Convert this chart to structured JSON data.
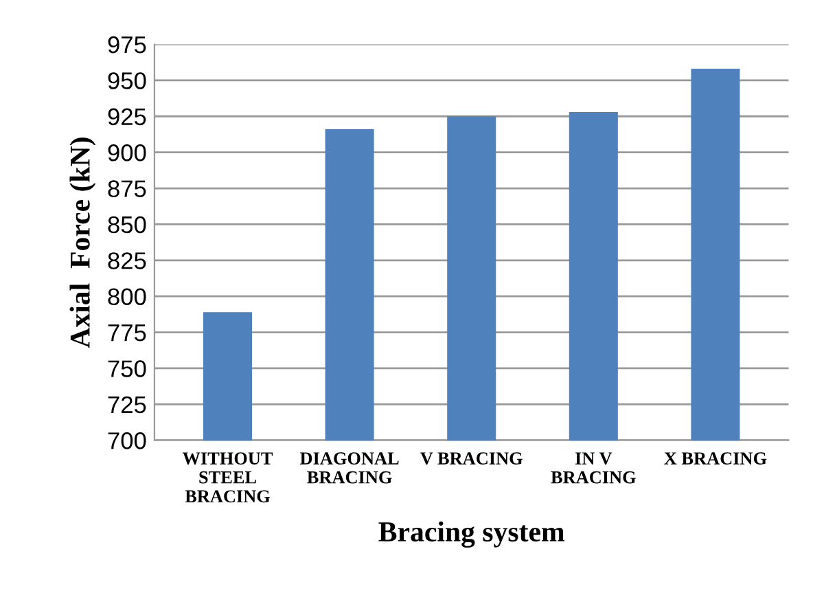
{
  "chart_data": {
    "type": "bar",
    "categories": [
      "WITHOUT\nSTEEL\nBRACING",
      "DIAGONAL\nBRACING",
      "V BRACING",
      "IN V\nBRACING",
      "X BRACING"
    ],
    "values": [
      789,
      916,
      925,
      928,
      958
    ],
    "color": "#4f81bd",
    "xlabel": "Bracing system",
    "ylabel": "Axial  Force (kN)",
    "ylim": [
      700,
      975
    ],
    "yticks": [
      700,
      725,
      750,
      775,
      800,
      825,
      850,
      875,
      900,
      925,
      950,
      975
    ],
    "grid": "y"
  }
}
